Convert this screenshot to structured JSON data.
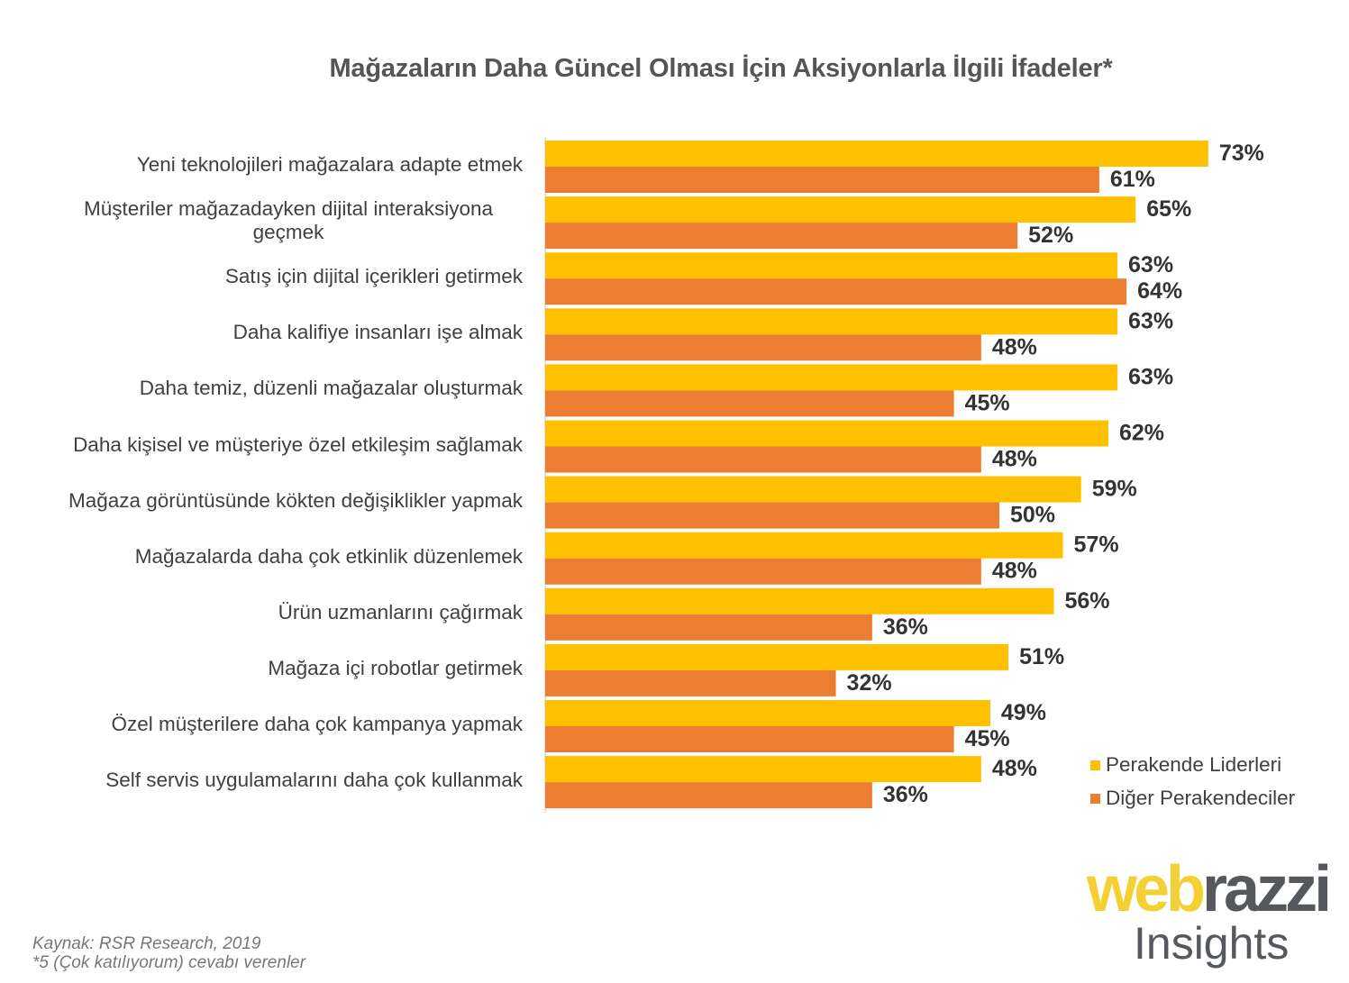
{
  "chart_data": {
    "type": "bar",
    "orientation": "horizontal",
    "title": "Mağazaların Daha Güncel Olması İçin Aksiyonlarla İlgili İfadeler*",
    "categories": [
      "Yeni teknolojileri mağazalara adapte etmek",
      "Müşteriler mağazadayken dijital interaksiyona geçmek",
      "Satış için dijital içerikleri getirmek",
      "Daha kalifiye insanları işe almak",
      "Daha temiz, düzenli mağazalar oluşturmak",
      "Daha kişisel ve müşteriye özel etkileşim sağlamak",
      "Mağaza görüntüsünde kökten değişiklikler yapmak",
      "Mağazalarda daha çok etkinlik düzenlemek",
      "Ürün uzmanlarını çağırmak",
      "Mağaza içi robotlar getirmek",
      "Özel müşterilere daha çok kampanya yapmak",
      "Self servis uygulamalarını daha çok kullanmak"
    ],
    "series": [
      {
        "name": "Perakende Liderleri",
        "color": "#FFC000",
        "values": [
          73,
          65,
          63,
          63,
          63,
          62,
          59,
          57,
          56,
          51,
          49,
          48
        ]
      },
      {
        "name": "Diğer Perakendeciler",
        "color": "#ED7D31",
        "values": [
          61,
          52,
          64,
          48,
          45,
          48,
          50,
          48,
          36,
          32,
          45,
          36
        ]
      }
    ],
    "value_format": "%",
    "xlim": [
      0,
      100
    ],
    "grid": false,
    "legend_position": "bottom-right"
  },
  "footer": {
    "source": "Kaynak: RSR Research, 2019",
    "note": "*5 (Çok katılıyorum) cevabı verenler"
  },
  "logo": {
    "part1": "web",
    "part2": "razzi",
    "part3": "Insights",
    "color1": "#F5D033",
    "color2": "#55585c"
  }
}
